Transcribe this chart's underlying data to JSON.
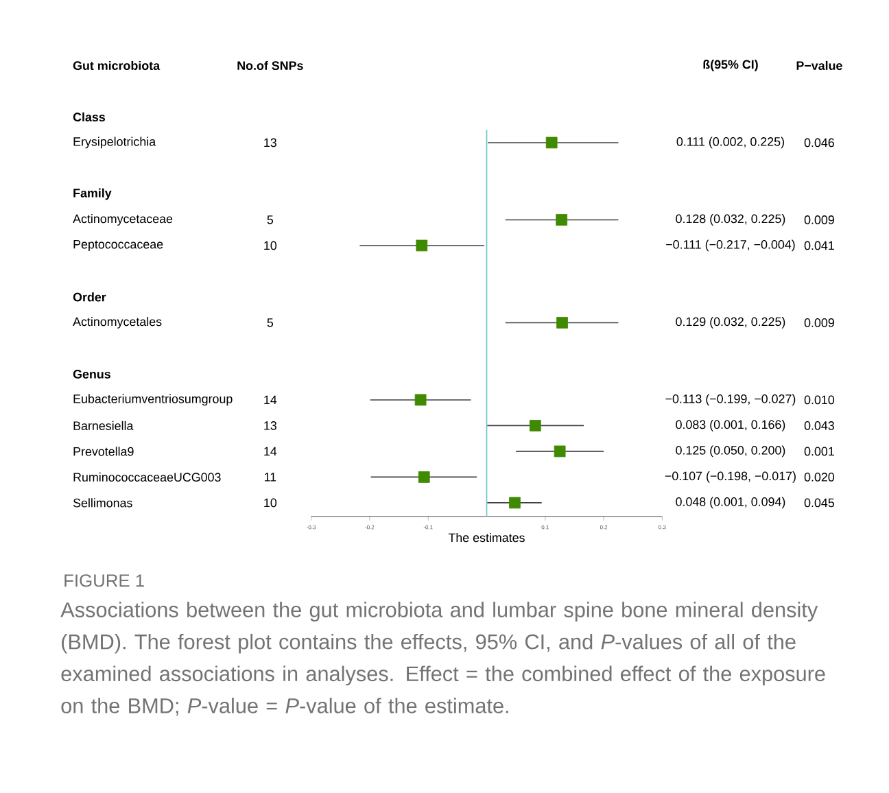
{
  "chart_data": {
    "type": "scatter",
    "orientation": "horizontal",
    "title": "FIGURE 1",
    "subtitle": "Associations between the gut microbiota and lumbar spine bone mineral density (BMD). The forest plot contains the effects, 95% CI, and *P*-values of all of the examined associations in analyses. Effect = the combined effect of the exposure on the BMD; *P*-value = *P*-value of the estimate.",
    "xlabel": "The estimates",
    "ylabel": "Gut microbiota",
    "categories": [
      "Class",
      "Erysipelotrichia",
      null,
      "Family",
      "Actinomycetaceae",
      "Peptococcaceae",
      null,
      "Order",
      "Actinomycetales",
      null,
      "Genus",
      "Eubacteriumventriosumgroup",
      "Barnesiella",
      "Prevotella9",
      "RuminococcaceaeUCG003",
      "Sellimonas"
    ],
    "values": [
      null,
      0.111,
      null,
      null,
      0.128,
      -0.111,
      null,
      null,
      0.129,
      null,
      null,
      -0.113,
      0.083,
      0.125,
      -0.107,
      0.048
    ],
    "errors": [
      null,
      [
        0.002,
        0.225
      ],
      null,
      null,
      [
        0.032,
        0.225
      ],
      [
        -0.217,
        -0.004
      ],
      null,
      null,
      [
        0.032,
        0.225
      ],
      null,
      null,
      [
        -0.199,
        -0.027
      ],
      [
        0.001,
        0.166
      ],
      [
        0.05,
        0.2
      ],
      [
        -0.198,
        -0.017
      ],
      [
        0.001,
        0.094
      ]
    ],
    "color": "#3f8a00",
    "marker": "square",
    "xlim": [
      -0.3,
      0.3
    ],
    "xticks": [
      -0.3,
      -0.2,
      -0.1,
      0.1,
      0.2,
      0.3
    ],
    "ref_lines": [
      {
        "axis": "x",
        "value": 0,
        "color": "#5fc4cc"
      }
    ],
    "annotations": [
      "No.of SNPs",
      "ß(95% CI)",
      "P−value",
      "13",
      "0.111 (0.002, 0.225)",
      "0.046",
      "5",
      "0.128 (0.032, 0.225)",
      "0.009",
      "10",
      "−0.111 (−0.217, −0.004)",
      "0.041",
      "5",
      "0.129 (0.032, 0.225)",
      "0.009",
      "14",
      "−0.113 (−0.199, −0.027)",
      "0.010",
      "13",
      "0.083 (0.001, 0.166)",
      "0.043",
      "14",
      "0.125 (0.050, 0.200)",
      "0.001",
      "11",
      "−0.107 (−0.198, −0.017)",
      "0.020",
      "10",
      "0.048 (0.001, 0.094)",
      "0.045"
    ]
  }
}
